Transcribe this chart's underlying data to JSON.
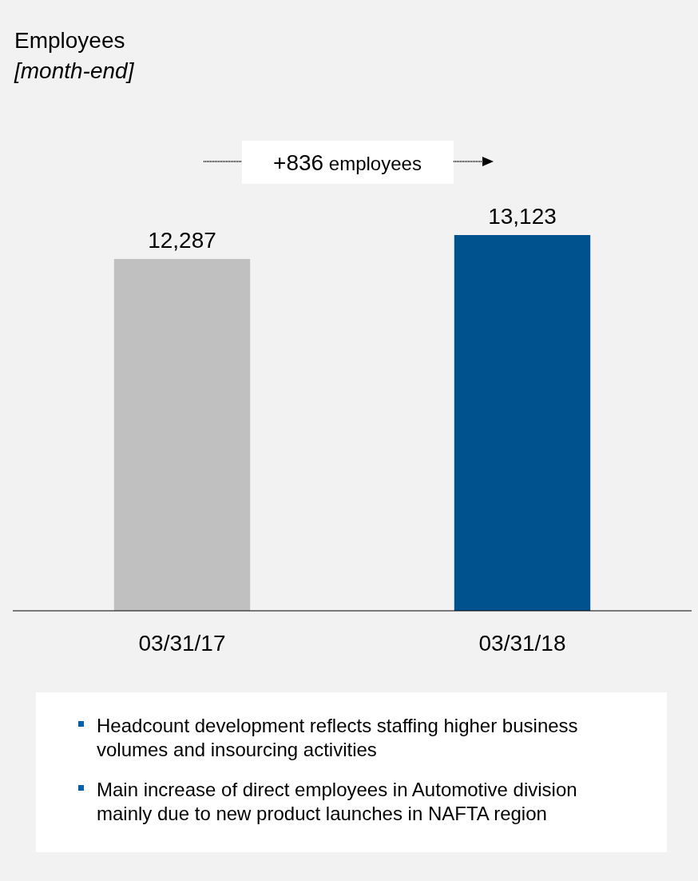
{
  "chart_data": {
    "type": "bar",
    "title": "Employees",
    "subtitle": "[month-end]",
    "categories": [
      "03/31/17",
      "03/31/18"
    ],
    "values": [
      12287,
      13123
    ],
    "colors": [
      "#c0c0c0",
      "#00528f"
    ],
    "value_labels": [
      "12,287",
      "13,123"
    ],
    "annotations": [
      "+836 employees",
      "Headcount development reflects staffing higher business volumes and insourcing activities",
      "Main increase of direct employees in Automotive division mainly due to new product launches in NAFTA region"
    ]
  }
}
